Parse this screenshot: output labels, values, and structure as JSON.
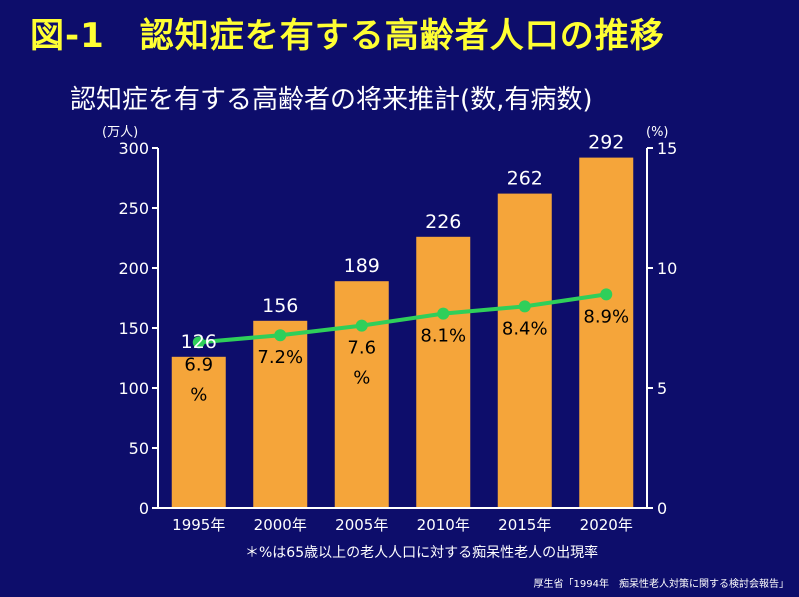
{
  "header": {
    "title": "図-1　認知症を有する高齢者人口の推移"
  },
  "chart_data": {
    "type": "bar",
    "title": "認知症を有する高齢者の将来推計(数,有病数)",
    "left_unit": "(万人)",
    "right_unit": "(%)",
    "categories": [
      "1995年",
      "2000年",
      "2005年",
      "2010年",
      "2015年",
      "2020年"
    ],
    "series": [
      {
        "type": "bar",
        "values": [
          126,
          156,
          189,
          226,
          262,
          292
        ],
        "labels": [
          "126",
          "156",
          "189",
          "226",
          "262",
          "292"
        ],
        "color": "#f5a53a"
      },
      {
        "type": "line",
        "axis": "right",
        "values": [
          6.9,
          7.2,
          7.6,
          8.1,
          8.4,
          8.9
        ],
        "labels": [
          "6.9%",
          "7.2%",
          "7.6%",
          "8.1%",
          "8.4%",
          "8.9%"
        ],
        "color": "#2fcf5a"
      }
    ],
    "ylim": [
      0,
      300
    ],
    "yticks": [
      "0",
      "50",
      "100",
      "150",
      "200",
      "250",
      "300"
    ],
    "y2lim": [
      0,
      15
    ],
    "y2ticks": [
      "0",
      "5",
      "10",
      "15"
    ],
    "grid": false,
    "legend": "none"
  },
  "footer": {
    "note": "＊%は65歳以上の老人人口に対する痴呆性老人の出現率",
    "source": "厚生省「1994年　痴呆性老人対策に関する検討会報告」"
  },
  "colors": {
    "background": "#0d0d6b",
    "title": "#ffff33",
    "bar": "#f5a53a",
    "line": "#2fcf5a",
    "axis": "#ffffff"
  }
}
